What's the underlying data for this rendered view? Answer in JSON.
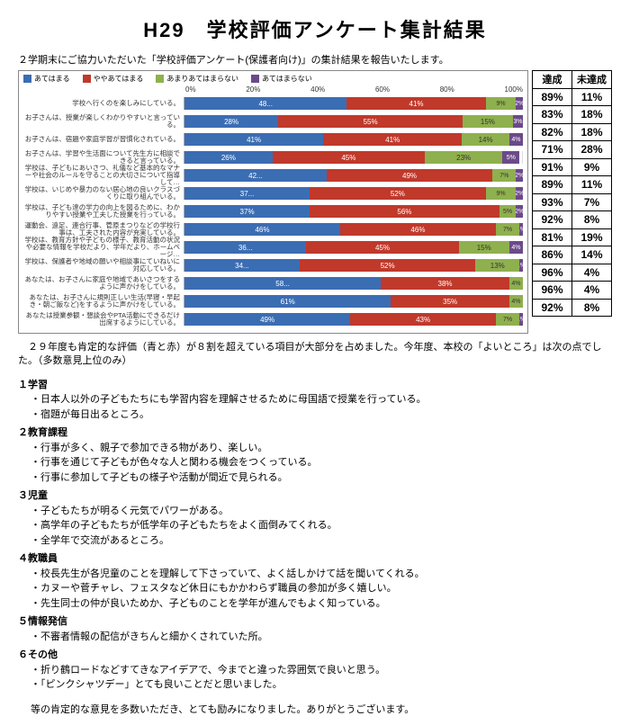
{
  "title": "H29　学校評価アンケート集計結果",
  "intro": "２学期末にご協力いただいた「学校評価アンケート(保護者向け)」の集計結果を報告いたします。",
  "legend": [
    {
      "label": "あてはまる",
      "color": "#3b6db3"
    },
    {
      "label": "ややあてはまる",
      "color": "#c0392b"
    },
    {
      "label": "あまりあてはまらない",
      "color": "#8fb04e"
    },
    {
      "label": "あてはまらない",
      "color": "#6b4a8a"
    }
  ],
  "axis": [
    "0%",
    "20%",
    "40%",
    "60%",
    "80%",
    "100%"
  ],
  "headers": {
    "achieve": "達成",
    "not": "未達成"
  },
  "rows": [
    {
      "label": "学校へ行くのを楽しみにしている。",
      "segs": [
        {
          "v": 48,
          "t": "48..."
        },
        {
          "v": 41,
          "t": "41%"
        },
        {
          "v": 9,
          "t": "9%"
        },
        {
          "v": 2,
          "t": "2%"
        }
      ],
      "ach": "89%",
      "not": "11%"
    },
    {
      "label": "お子さんは、授業が楽しくわかりやすいと言っている。",
      "segs": [
        {
          "v": 28,
          "t": "28%"
        },
        {
          "v": 55,
          "t": "55%"
        },
        {
          "v": 15,
          "t": "15%"
        },
        {
          "v": 3,
          "t": "3%"
        }
      ],
      "ach": "83%",
      "not": "18%"
    },
    {
      "label": "お子さんは、宿題や家庭学習が習慣化されている。",
      "segs": [
        {
          "v": 41,
          "t": "41%"
        },
        {
          "v": 41,
          "t": "41%"
        },
        {
          "v": 14,
          "t": "14%"
        },
        {
          "v": 4,
          "t": "4%"
        }
      ],
      "ach": "82%",
      "not": "18%"
    },
    {
      "label": "お子さんは、学習や生活面について先生方に相談できると言っている。",
      "segs": [
        {
          "v": 26,
          "t": "26%"
        },
        {
          "v": 45,
          "t": "45%"
        },
        {
          "v": 23,
          "t": "23%"
        },
        {
          "v": 5,
          "t": "5%"
        }
      ],
      "ach": "71%",
      "not": "28%"
    },
    {
      "label": "学校は、子どもにあいさつ、礼儀など基本的なマナーや社会のルールを守ることの大切さについて指導して…",
      "segs": [
        {
          "v": 42,
          "t": "42..."
        },
        {
          "v": 49,
          "t": "49%"
        },
        {
          "v": 7,
          "t": "7%"
        },
        {
          "v": 2,
          "t": "2%"
        }
      ],
      "ach": "91%",
      "not": "9%"
    },
    {
      "label": "学校は、いじめや暴力のない居心地の良いクラスづくりに取り組んでいる。",
      "segs": [
        {
          "v": 37,
          "t": "37..."
        },
        {
          "v": 52,
          "t": "52%"
        },
        {
          "v": 9,
          "t": "9%"
        },
        {
          "v": 2,
          "t": "2%"
        }
      ],
      "ach": "89%",
      "not": "11%"
    },
    {
      "label": "学校は、子ども達の学力の向上を図るために、わかりやすい授業や工夫した授業を行っている。",
      "segs": [
        {
          "v": 37,
          "t": "37%"
        },
        {
          "v": 56,
          "t": "56%"
        },
        {
          "v": 5,
          "t": "5%"
        },
        {
          "v": 2,
          "t": "2%"
        }
      ],
      "ach": "93%",
      "not": "7%"
    },
    {
      "label": "運動会、遠足、連合行事、菅原まつりなどの学校行事は、工夫された内容が充実している。",
      "segs": [
        {
          "v": 46,
          "t": "46%"
        },
        {
          "v": 46,
          "t": "46%"
        },
        {
          "v": 7,
          "t": "7%"
        },
        {
          "v": 1,
          "t": "1%"
        }
      ],
      "ach": "92%",
      "not": "8%"
    },
    {
      "label": "学校は、教育方針や子どもの様子、教育活動の状況や必要な情報を学校だより、学年だより、ホームページ…",
      "segs": [
        {
          "v": 36,
          "t": "36..."
        },
        {
          "v": 45,
          "t": "45%"
        },
        {
          "v": 15,
          "t": "15%"
        },
        {
          "v": 4,
          "t": "4%"
        }
      ],
      "ach": "81%",
      "not": "19%"
    },
    {
      "label": "学校は、保護者や地域の願いや相談事にていねいに対応している。",
      "segs": [
        {
          "v": 34,
          "t": "34..."
        },
        {
          "v": 52,
          "t": "52%"
        },
        {
          "v": 13,
          "t": "13%"
        },
        {
          "v": 1,
          "t": "1%"
        }
      ],
      "ach": "86%",
      "not": "14%"
    },
    {
      "label": "あなたは、お子さんに家庭や地域であいさつをするように声かけをしている。",
      "segs": [
        {
          "v": 58,
          "t": "58..."
        },
        {
          "v": 38,
          "t": "38%"
        },
        {
          "v": 4,
          "t": "4%"
        },
        {
          "v": 0,
          "t": ""
        }
      ],
      "ach": "96%",
      "not": "4%"
    },
    {
      "label": "あなたは、お子さんに規則正しい生活(早寝・早起き・朝ご飯など)をするように声かけをしている。",
      "segs": [
        {
          "v": 61,
          "t": "61%"
        },
        {
          "v": 35,
          "t": "35%"
        },
        {
          "v": 4,
          "t": "4%"
        },
        {
          "v": 0,
          "t": ""
        }
      ],
      "ach": "96%",
      "not": "4%"
    },
    {
      "label": "あなたは授業参観・懇談会やPTA活動にできるだけ出席するようにしている。",
      "segs": [
        {
          "v": 49,
          "t": "49%"
        },
        {
          "v": 43,
          "t": "43%"
        },
        {
          "v": 7,
          "t": "7%"
        },
        {
          "v": 1,
          "t": "1%"
        }
      ],
      "ach": "92%",
      "not": "8%"
    }
  ],
  "summary": "　２９年度も肯定的な評価（青と赤）が８割を超えている項目が大部分を占めました。今年度、本校の「よいところ」は次の点でした。（多数意見上位のみ）",
  "categories": [
    {
      "head": "１学習",
      "items": [
        "・日本人以外の子どもたちにも学習内容を理解させるために母国語で授業を行っている。",
        "・宿題が毎日出るところ。"
      ]
    },
    {
      "head": "２教育課程",
      "items": [
        "・行事が多く、親子で参加できる物があり、楽しい。",
        "・行事を通じて子どもが色々な人と関わる機会をつくっている。",
        "・行事に参加して子どもの様子や活動が間近で見られる。"
      ]
    },
    {
      "head": "３児童",
      "items": [
        "・子どもたちが明るく元気でパワーがある。",
        "・高学年の子どもたちが低学年の子どもたちをよく面倒みてくれる。",
        "・全学年で交流があるところ。"
      ]
    },
    {
      "head": "４教職員",
      "items": [
        "・校長先生が各児童のことを理解して下さっていて、よく話しかけて話を聞いてくれる。",
        "・カヌーや菅チャレ、フェスタなど休日にもかかわらず職員の参加が多く嬉しい。",
        "・先生同士の仲が良いためか、子どものことを学年が進んでもよく知っている。"
      ]
    },
    {
      "head": "５情報発信",
      "items": [
        "・不審者情報の配信がきちんと細かくされていた所。"
      ]
    },
    {
      "head": "６その他",
      "items": [
        "・折り鶴ロードなどすてきなアイデアで、今までと違った雰囲気で良いと思う。",
        "・「ピンクシャツデー」とても良いことだと思いました。"
      ]
    }
  ],
  "closing": "等の肯定的な意見を多数いただき、とても励みになりました。ありがとうございます。"
}
